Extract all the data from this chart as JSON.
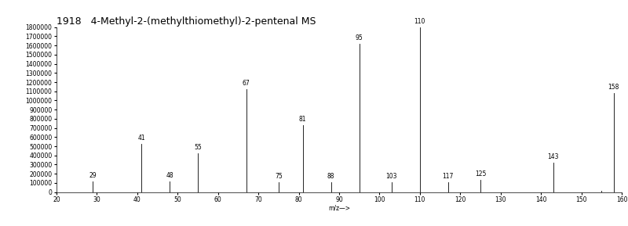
{
  "title": "1918   4-Methyl-2-(methylthiomethyl)-2-pentenal MS",
  "xlabel": "m/z—>",
  "ylabel": "",
  "xlim": [
    20,
    160
  ],
  "ylim": [
    0,
    1800000
  ],
  "yticks": [
    0,
    100000,
    200000,
    300000,
    400000,
    500000,
    600000,
    700000,
    800000,
    900000,
    1000000,
    1100000,
    1200000,
    1300000,
    1400000,
    1500000,
    1600000,
    1700000,
    1800000
  ],
  "xticks": [
    20,
    30,
    40,
    50,
    60,
    70,
    80,
    90,
    100,
    110,
    120,
    130,
    140,
    150,
    160
  ],
  "peaks": [
    {
      "mz": 29,
      "intensity": 120000
    },
    {
      "mz": 41,
      "intensity": 530000
    },
    {
      "mz": 48,
      "intensity": 115000
    },
    {
      "mz": 55,
      "intensity": 420000
    },
    {
      "mz": 67,
      "intensity": 1120000
    },
    {
      "mz": 75,
      "intensity": 110000
    },
    {
      "mz": 81,
      "intensity": 730000
    },
    {
      "mz": 88,
      "intensity": 110000
    },
    {
      "mz": 95,
      "intensity": 1620000
    },
    {
      "mz": 103,
      "intensity": 110000
    },
    {
      "mz": 110,
      "intensity": 1800000
    },
    {
      "mz": 117,
      "intensity": 110000
    },
    {
      "mz": 125,
      "intensity": 130000
    },
    {
      "mz": 143,
      "intensity": 320000
    },
    {
      "mz": 155,
      "intensity": 15000
    },
    {
      "mz": 158,
      "intensity": 1080000
    }
  ],
  "bar_color": "#000000",
  "bg_color": "#ffffff",
  "title_fontsize": 9,
  "tick_fontsize": 5.5,
  "label_fontsize": 5.5,
  "peak_label_fontsize": 5.5
}
